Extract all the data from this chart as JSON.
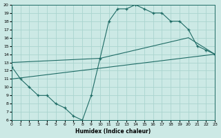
{
  "xlabel": "Humidex (Indice chaleur)",
  "xlim": [
    0,
    23
  ],
  "ylim": [
    6,
    20
  ],
  "xticks": [
    0,
    1,
    2,
    3,
    4,
    5,
    6,
    7,
    8,
    9,
    10,
    11,
    12,
    13,
    14,
    15,
    16,
    17,
    18,
    19,
    20,
    21,
    22,
    23
  ],
  "yticks": [
    6,
    7,
    8,
    9,
    10,
    11,
    12,
    13,
    14,
    15,
    16,
    17,
    18,
    19,
    20
  ],
  "bg_color": "#cce9e5",
  "grid_color": "#aad4cf",
  "line_color": "#1e6b65",
  "curve_x": [
    0,
    1,
    2,
    3,
    4,
    5,
    6,
    7,
    8,
    9,
    10,
    11,
    12,
    13,
    14,
    15,
    16,
    17,
    18,
    19,
    20,
    21,
    22,
    23
  ],
  "curve_y": [
    12.5,
    11,
    10,
    9,
    9,
    8,
    7.5,
    6.5,
    6,
    9,
    13.5,
    18,
    19.5,
    19.5,
    20,
    19.5,
    19,
    19,
    18,
    18,
    17,
    15,
    14.5,
    14
  ],
  "line2_x": [
    0,
    23
  ],
  "line2_y": [
    11,
    14
  ],
  "line3_x": [
    0,
    10,
    20,
    23
  ],
  "line3_y": [
    13,
    13.5,
    16,
    14
  ]
}
